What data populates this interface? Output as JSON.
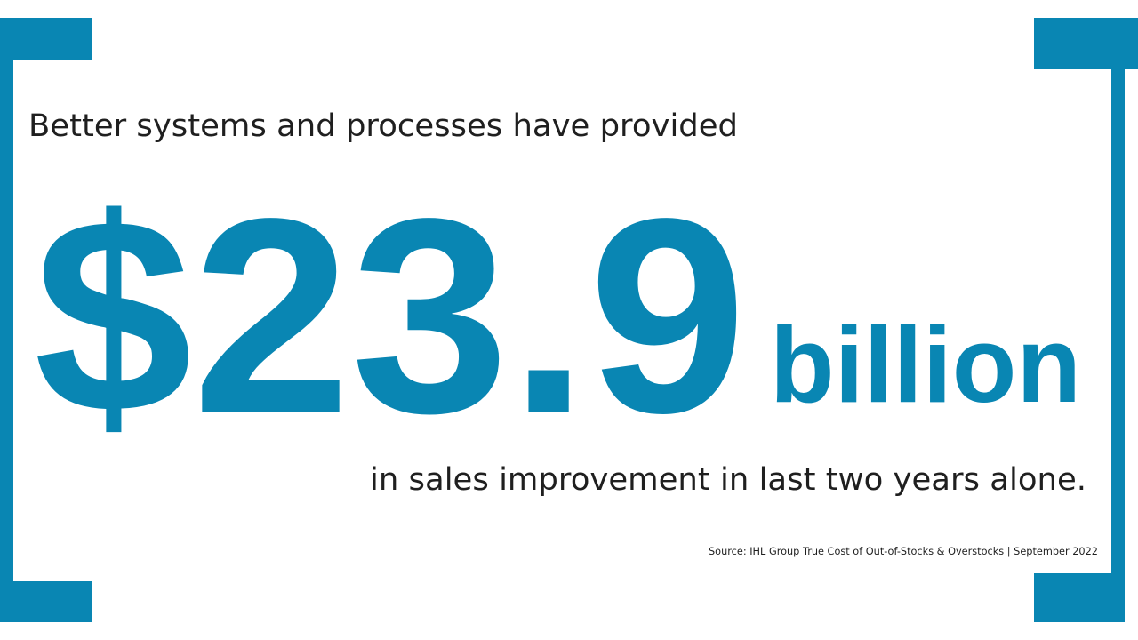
{
  "intro": "Better systems and processes have provided",
  "amount": "$23.9",
  "unit": "billion",
  "outro": "in sales improvement in last two years alone.",
  "source": "Source: IHL Group True Cost of Out-of-Stocks & Overstocks | September 2022"
}
